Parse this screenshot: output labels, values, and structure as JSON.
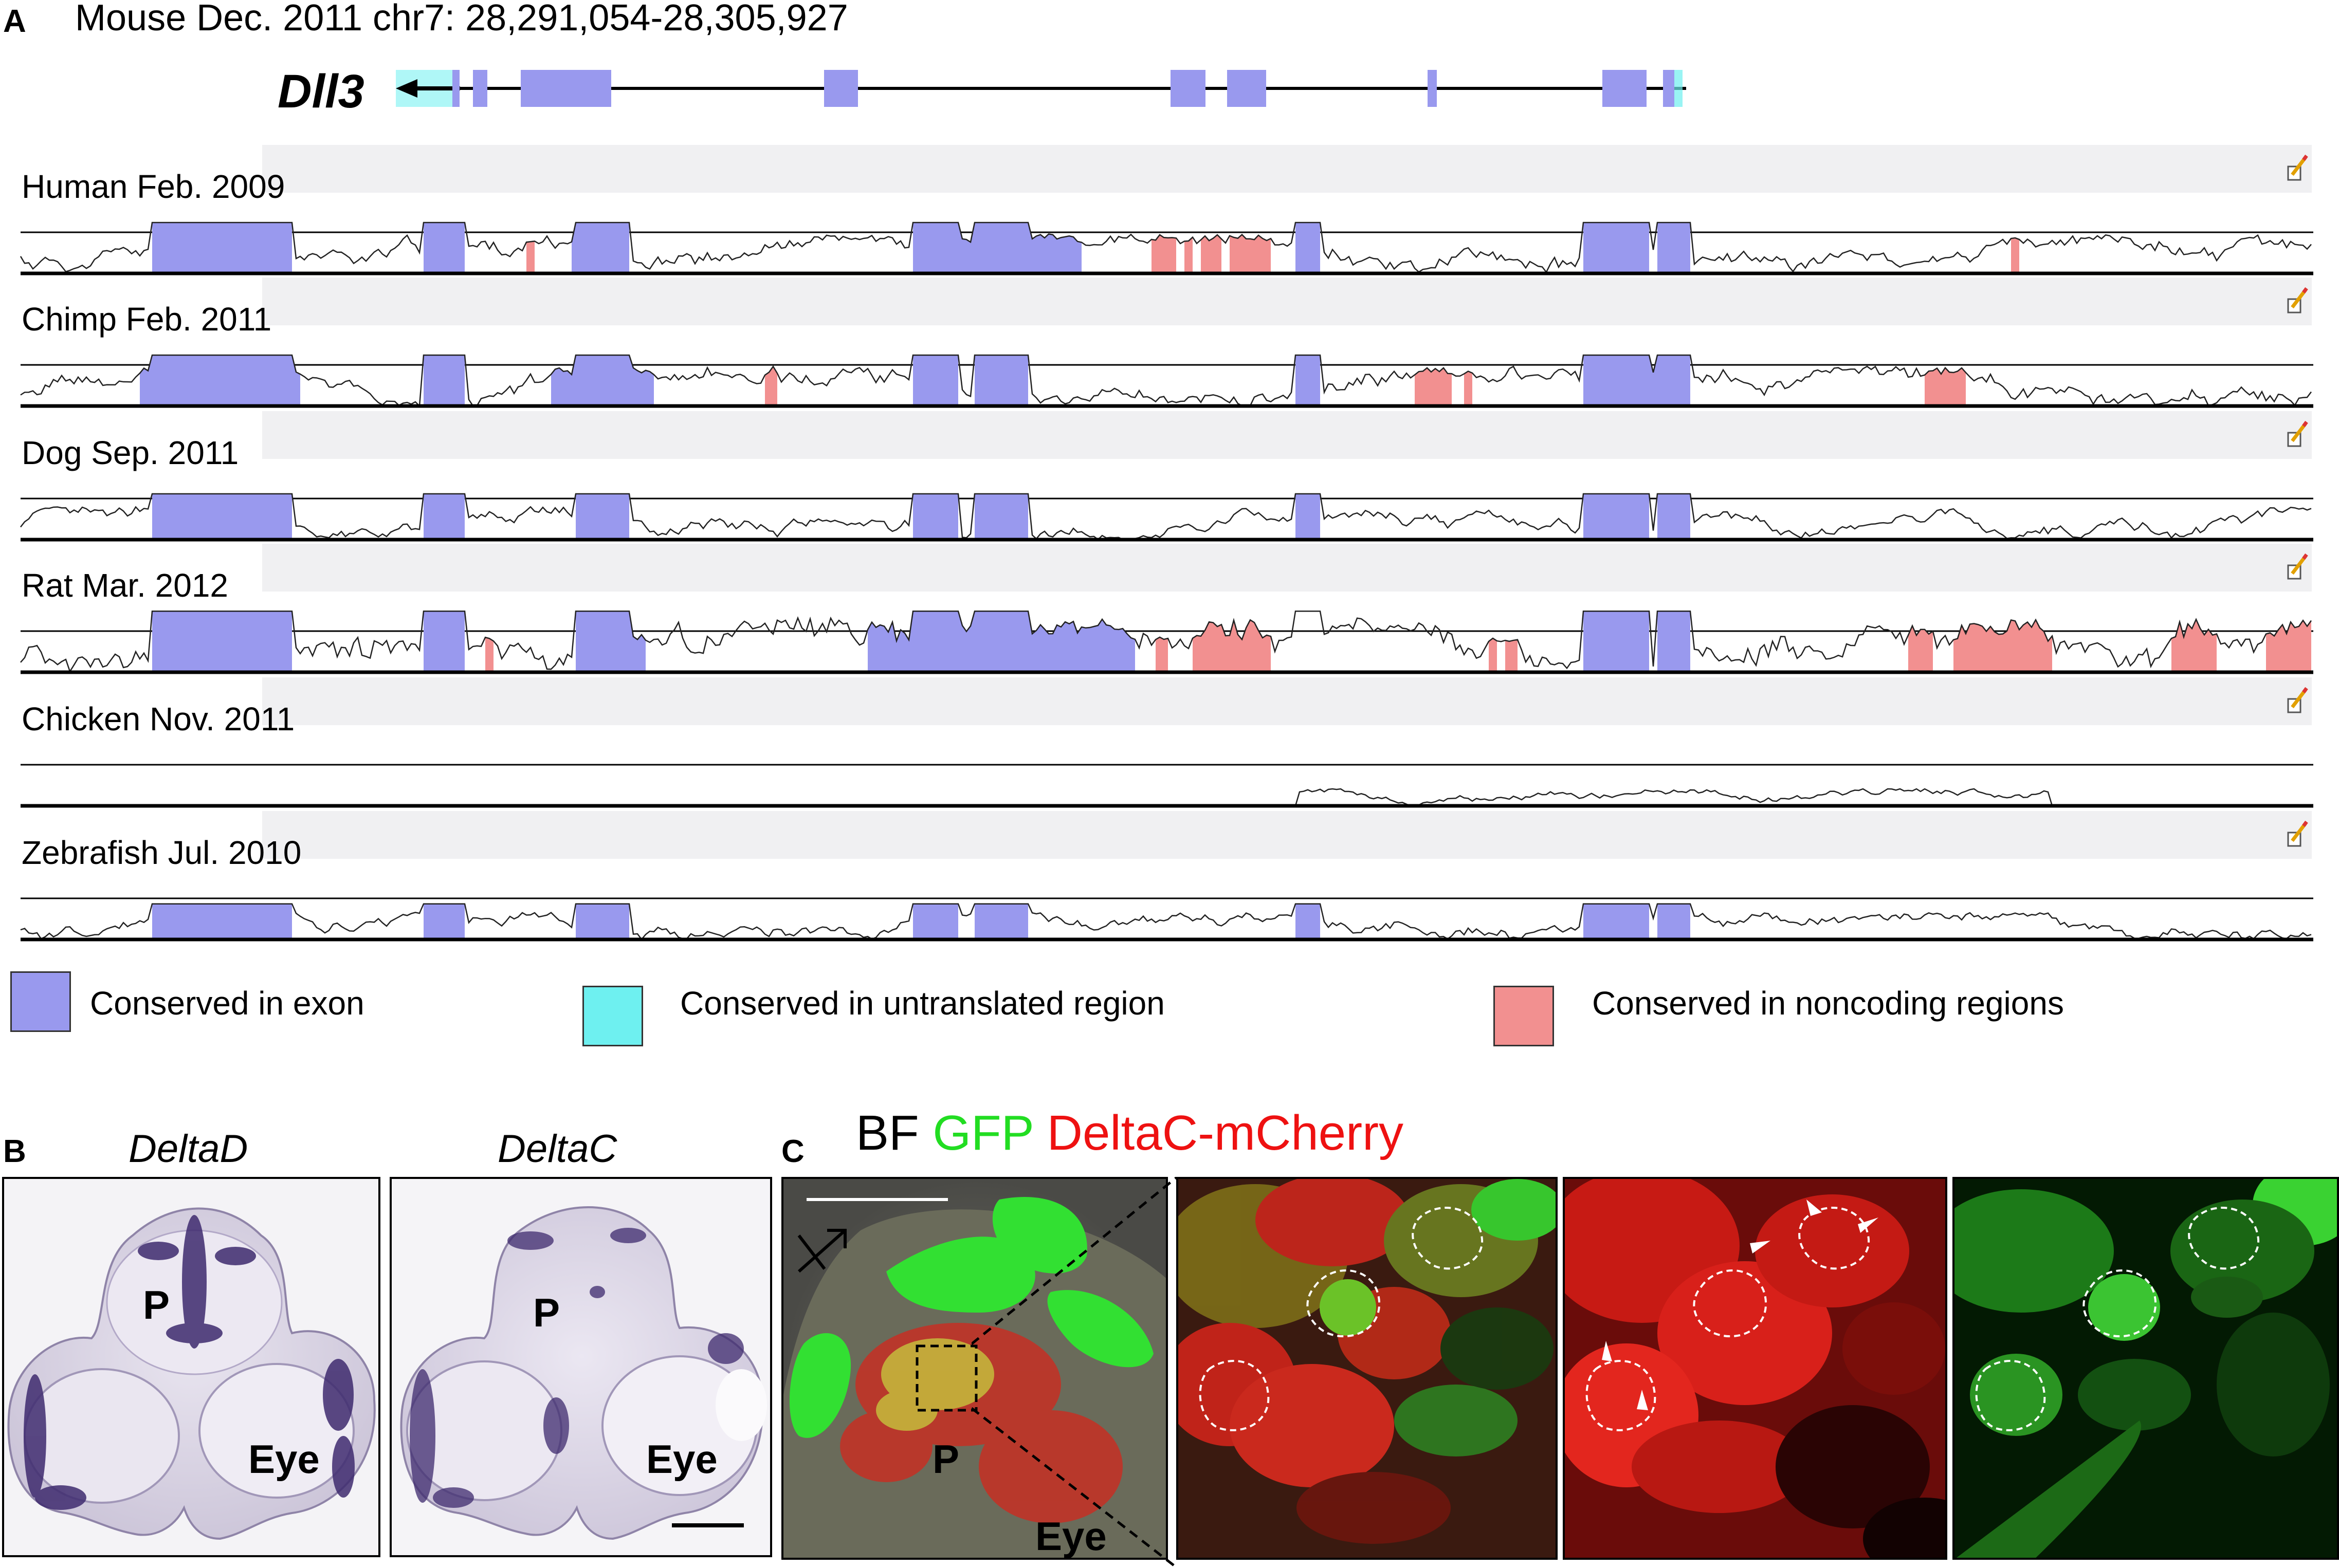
{
  "panel_a": {
    "letter": "A",
    "title": "Mouse Dec. 2011 chr7: 28,291,054-28,305,927",
    "gene": "Dll3",
    "colors": {
      "exon": "#9999ee",
      "utr": "#6ef0f0",
      "noncoding": "#f29090"
    },
    "tracks": [
      {
        "label": "Human Feb. 2009"
      },
      {
        "label": "Chimp Feb. 2011"
      },
      {
        "label": "Dog Sep. 2011"
      },
      {
        "label": "Rat Mar. 2012"
      },
      {
        "label": "Chicken Nov. 2011"
      },
      {
        "label": "Zebrafish Jul. 2010"
      }
    ],
    "legend": [
      {
        "label": "Conserved in exon",
        "color": "#9999ee"
      },
      {
        "label": "Conserved in untranslated region",
        "color": "#6ef0f0"
      },
      {
        "label": "Conserved in noncoding regions",
        "color": "#f29090"
      }
    ]
  },
  "panel_b": {
    "letter": "B",
    "images": [
      {
        "title": "DeltaD",
        "label_p": "P",
        "label_eye": "Eye"
      },
      {
        "title": "DeltaC",
        "label_p": "P",
        "label_eye": "Eye"
      }
    ]
  },
  "panel_c": {
    "letter": "C",
    "channels": [
      {
        "text": "BF",
        "color": "#000000"
      },
      {
        "text": "GFP",
        "color": "#22dd22"
      },
      {
        "text": "DeltaC-mCherry",
        "color": "#ee1111"
      }
    ],
    "label_p": "P",
    "label_eye": "Eye"
  }
}
